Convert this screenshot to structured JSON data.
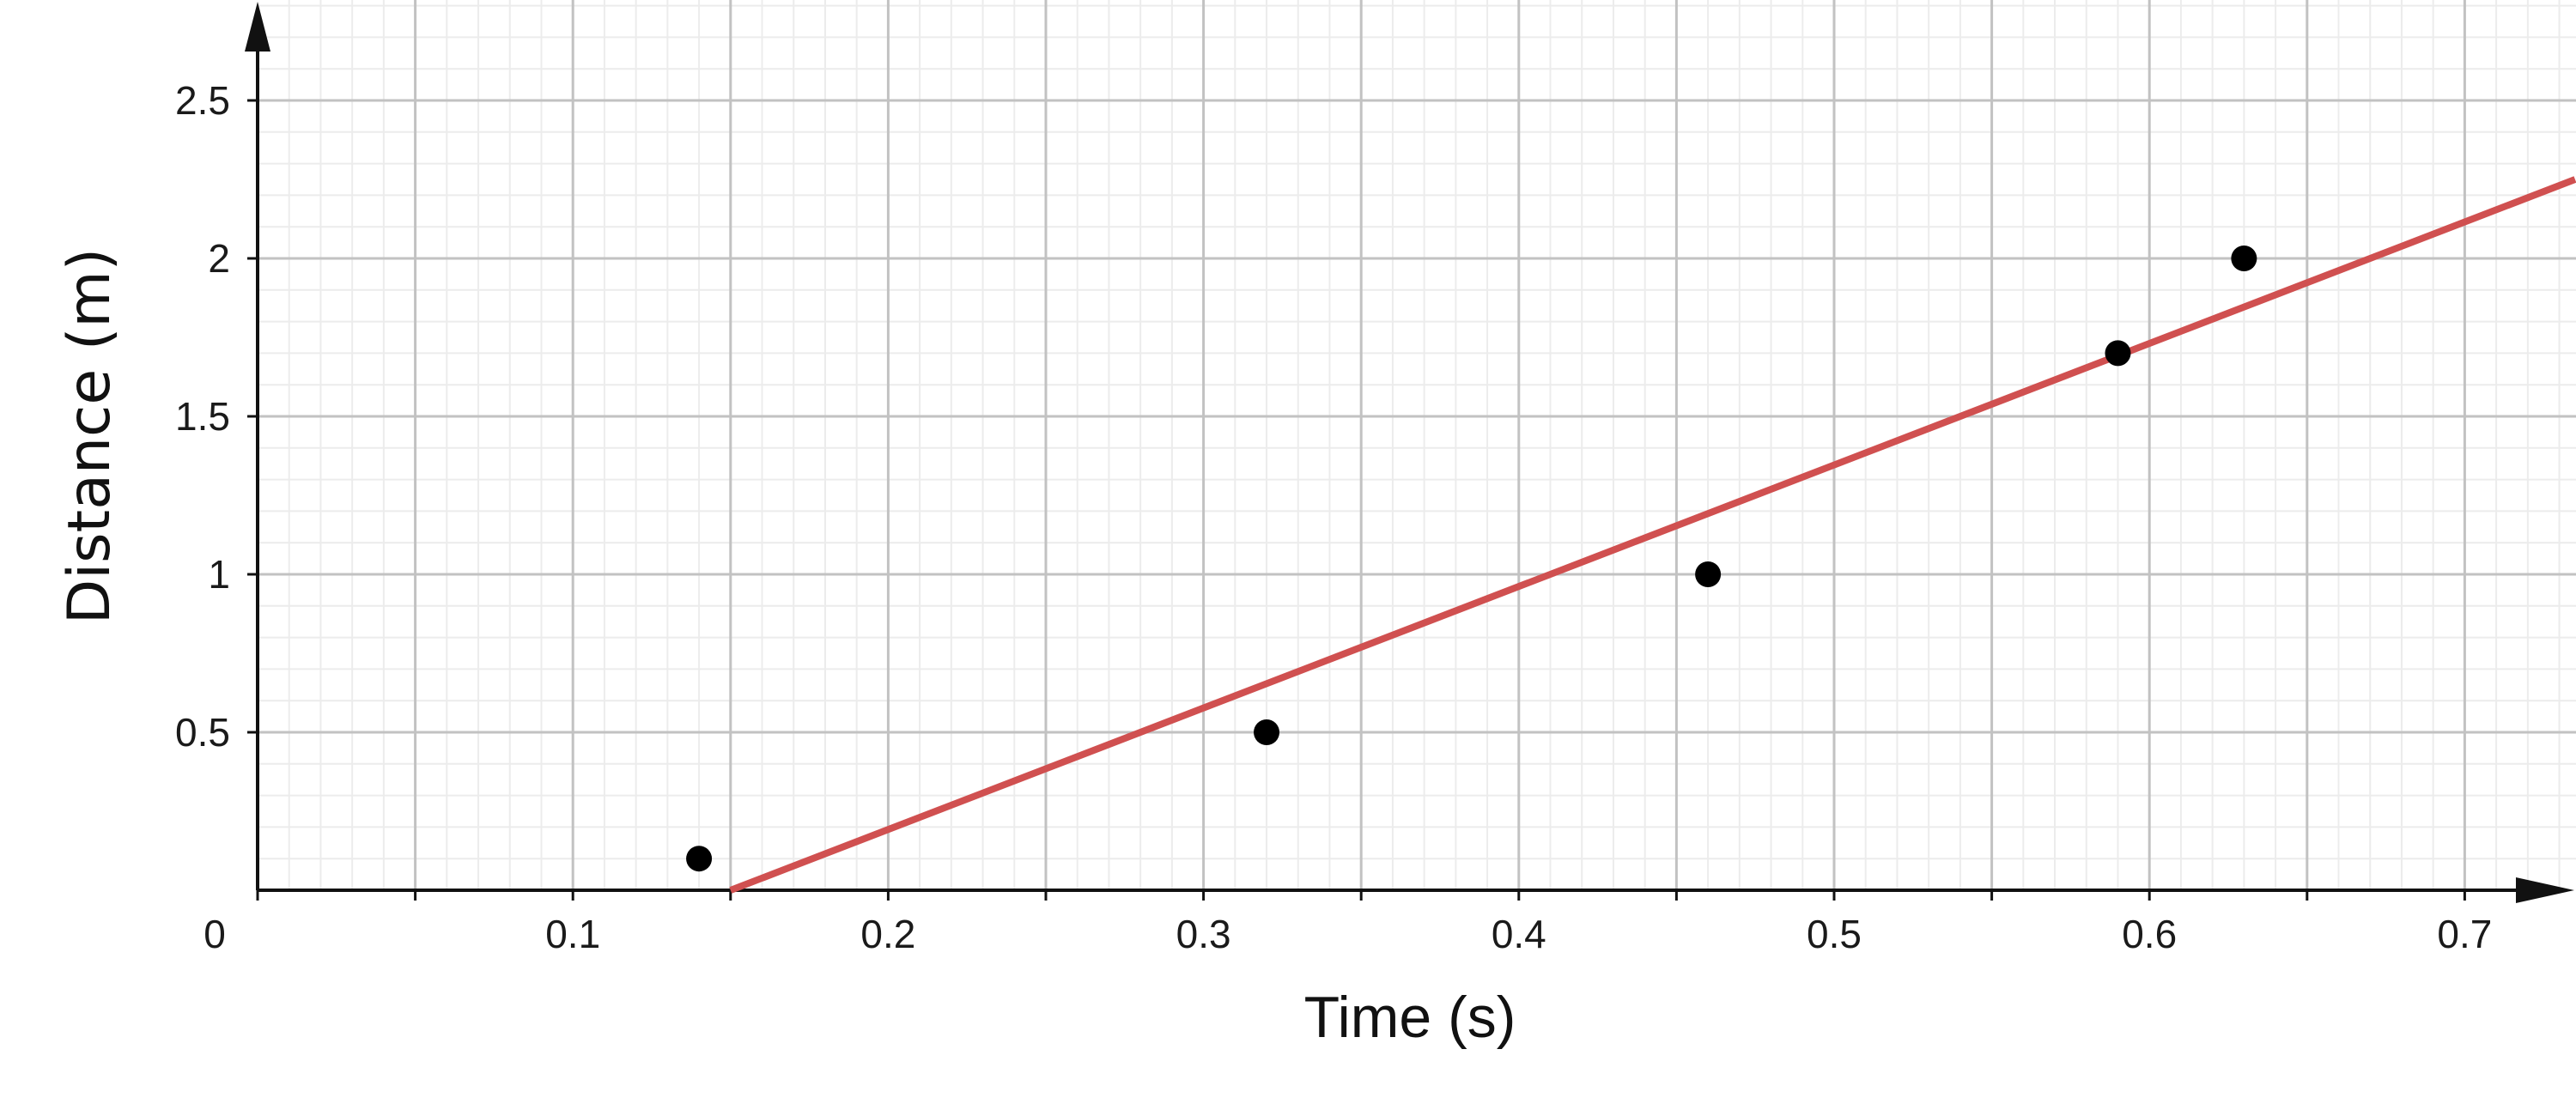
{
  "chart_data": {
    "type": "scatter",
    "xlabel": "Time (s)",
    "ylabel": "Distance (m)",
    "xlim": [
      0,
      0.735
    ],
    "ylim": [
      0,
      2.8
    ],
    "x_ticks": [
      "0",
      "0.1",
      "0.2",
      "0.3",
      "0.4",
      "0.5",
      "0.6",
      "0.7"
    ],
    "y_ticks": [
      "0.5",
      "1",
      "1.5",
      "2",
      "2.5"
    ],
    "grid": true,
    "series": [
      {
        "kind": "points",
        "x": [
          0.14,
          0.32,
          0.46,
          0.59,
          0.63
        ],
        "y": [
          0.1,
          0.5,
          1.0,
          1.7,
          2.0
        ],
        "color": "#000000"
      },
      {
        "kind": "best-fit-line",
        "x": [
          0.15,
          0.735
        ],
        "y": [
          0.0,
          2.25
        ],
        "color": "#d05050"
      }
    ]
  }
}
